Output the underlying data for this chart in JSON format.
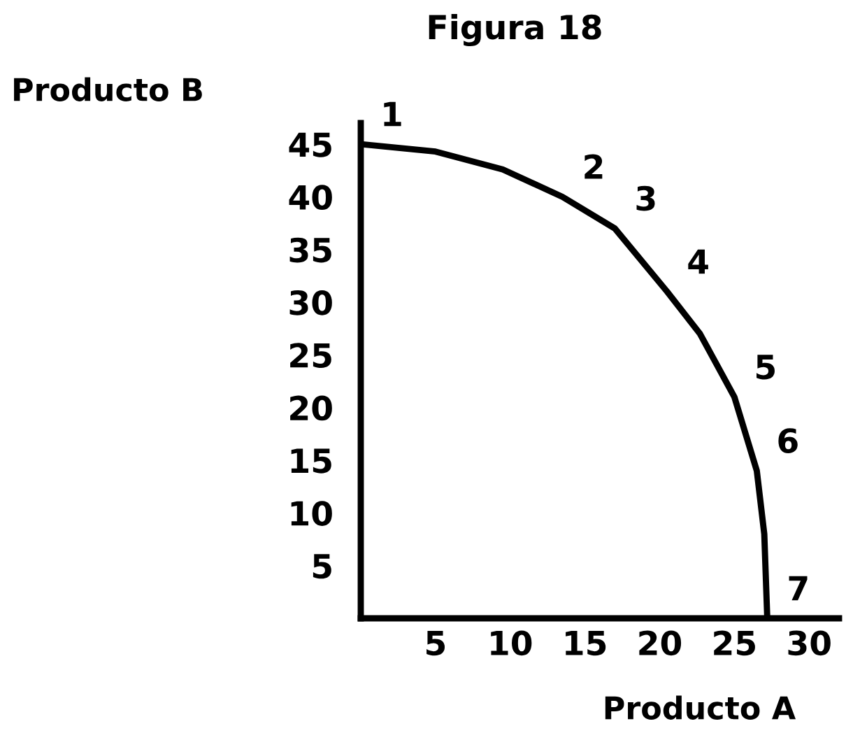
{
  "chart_data": {
    "type": "line",
    "title": "Figura 18",
    "xlabel": "Producto A",
    "ylabel": "Producto B",
    "x": [
      0,
      5,
      9.5,
      13.5,
      17,
      20.5,
      22.7,
      25,
      26.5,
      27,
      27.2
    ],
    "series": [
      {
        "color": "#000000",
        "values": [
          45,
          44.3,
          42.6,
          40,
          37,
          31,
          27,
          21,
          14,
          8,
          0
        ]
      }
    ],
    "xlim": [
      0,
      32
    ],
    "ylim": [
      0,
      47
    ],
    "xticks": [
      5,
      10,
      15,
      20,
      25,
      30
    ],
    "yticks": [
      5,
      10,
      15,
      20,
      25,
      30,
      35,
      40,
      45
    ],
    "grid": false,
    "marker": "none",
    "line_style": "solid",
    "annotations": [
      {
        "text": "1",
        "x": 0,
        "y": 45
      },
      {
        "text": "2",
        "x": 13.5,
        "y": 40
      },
      {
        "text": "3",
        "x": 17,
        "y": 37
      },
      {
        "text": "4",
        "x": 20.5,
        "y": 31
      },
      {
        "text": "5",
        "x": 25,
        "y": 21
      },
      {
        "text": "6",
        "x": 26.5,
        "y": 14
      },
      {
        "text": "7",
        "x": 27.2,
        "y": 0
      }
    ]
  }
}
